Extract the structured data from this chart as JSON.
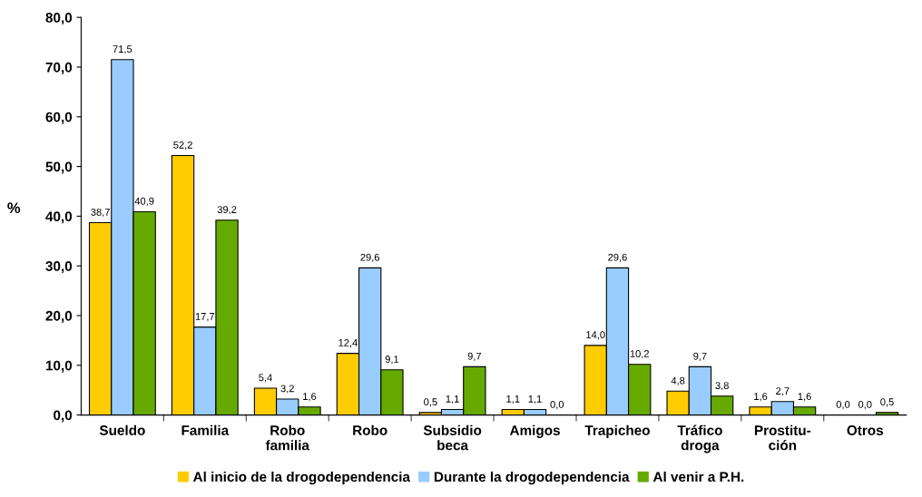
{
  "chart_data": {
    "type": "bar",
    "ylabel": "%",
    "categories": [
      "Sueldo",
      "Familia",
      "Robo\nfamilia",
      "Robo",
      "Subsidio\nbeca",
      "Amigos",
      "Trapicheo",
      "Tráfico\ndroga",
      "Prostitu-\nción",
      "Otros"
    ],
    "series": [
      {
        "name": "Al inicio de la drogodependencia",
        "color": "#ffcc00",
        "values": [
          38.7,
          52.2,
          5.4,
          12.4,
          0.5,
          1.1,
          14.0,
          4.8,
          1.6,
          0.0
        ],
        "value_labels": [
          "38,7",
          "52,2",
          "5,4",
          "12,4",
          "0,5",
          "1,1",
          "14,0",
          "4,8",
          "1,6",
          "0,0"
        ]
      },
      {
        "name": "Durante la drogodependencia",
        "color": "#99ccff",
        "values": [
          71.5,
          17.7,
          3.2,
          29.6,
          1.1,
          1.1,
          29.6,
          9.7,
          2.7,
          0.0
        ],
        "value_labels": [
          "71,5",
          "17,7",
          "3,2",
          "29,6",
          "1,1",
          "1,1",
          "29,6",
          "9,7",
          "2,7",
          "0,0"
        ]
      },
      {
        "name": "Al venir a P.H.",
        "color": "#66aa00",
        "values": [
          40.9,
          39.2,
          1.6,
          9.1,
          9.7,
          0.0,
          10.2,
          3.8,
          1.6,
          0.5
        ],
        "value_labels": [
          "40,9",
          "39,2",
          "1,6",
          "9,1",
          "9,7",
          "0,0",
          "10,2",
          "3,8",
          "1,6",
          "0,5"
        ]
      }
    ],
    "ylim": [
      0,
      80
    ],
    "yticks": [
      {
        "value": 0,
        "label": "0,0"
      },
      {
        "value": 10,
        "label": "10,0"
      },
      {
        "value": 20,
        "label": "20,0"
      },
      {
        "value": 30,
        "label": "30,0"
      },
      {
        "value": 40,
        "label": "40,0"
      },
      {
        "value": 50,
        "label": "50,0"
      },
      {
        "value": 60,
        "label": "60,0"
      },
      {
        "value": 70,
        "label": "70,0"
      },
      {
        "value": 80,
        "label": "80,0"
      }
    ],
    "grid": false,
    "legend": "bottom"
  }
}
